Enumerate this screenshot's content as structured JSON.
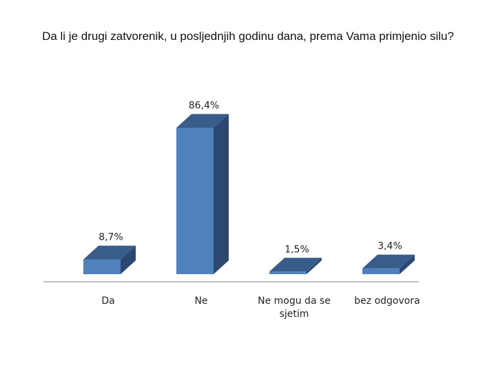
{
  "chart_data": {
    "type": "bar",
    "title": "Da li je drugi zatvorenik, u posljednjih godinu dana, prema Vama primjenio silu?",
    "categories": [
      "Da",
      "Ne",
      "Ne mogu da se sjetim",
      "bez odgovora"
    ],
    "category_lines": [
      [
        "Da"
      ],
      [
        "Ne"
      ],
      [
        "Ne mogu da se",
        "sjetim"
      ],
      [
        "bez odgovora"
      ]
    ],
    "values": [
      8.7,
      86.4,
      1.5,
      3.4
    ],
    "value_labels": [
      "8,7%",
      "86,4%",
      "1,5%",
      "3,4%"
    ],
    "ylim": [
      0,
      100
    ],
    "three_d": true,
    "grid": false,
    "legend": "none",
    "bar_color": "#4f81bd",
    "bar_side_color": "#2c4770",
    "bar_top_color": "#385d8a",
    "axis_color": "#808080"
  }
}
